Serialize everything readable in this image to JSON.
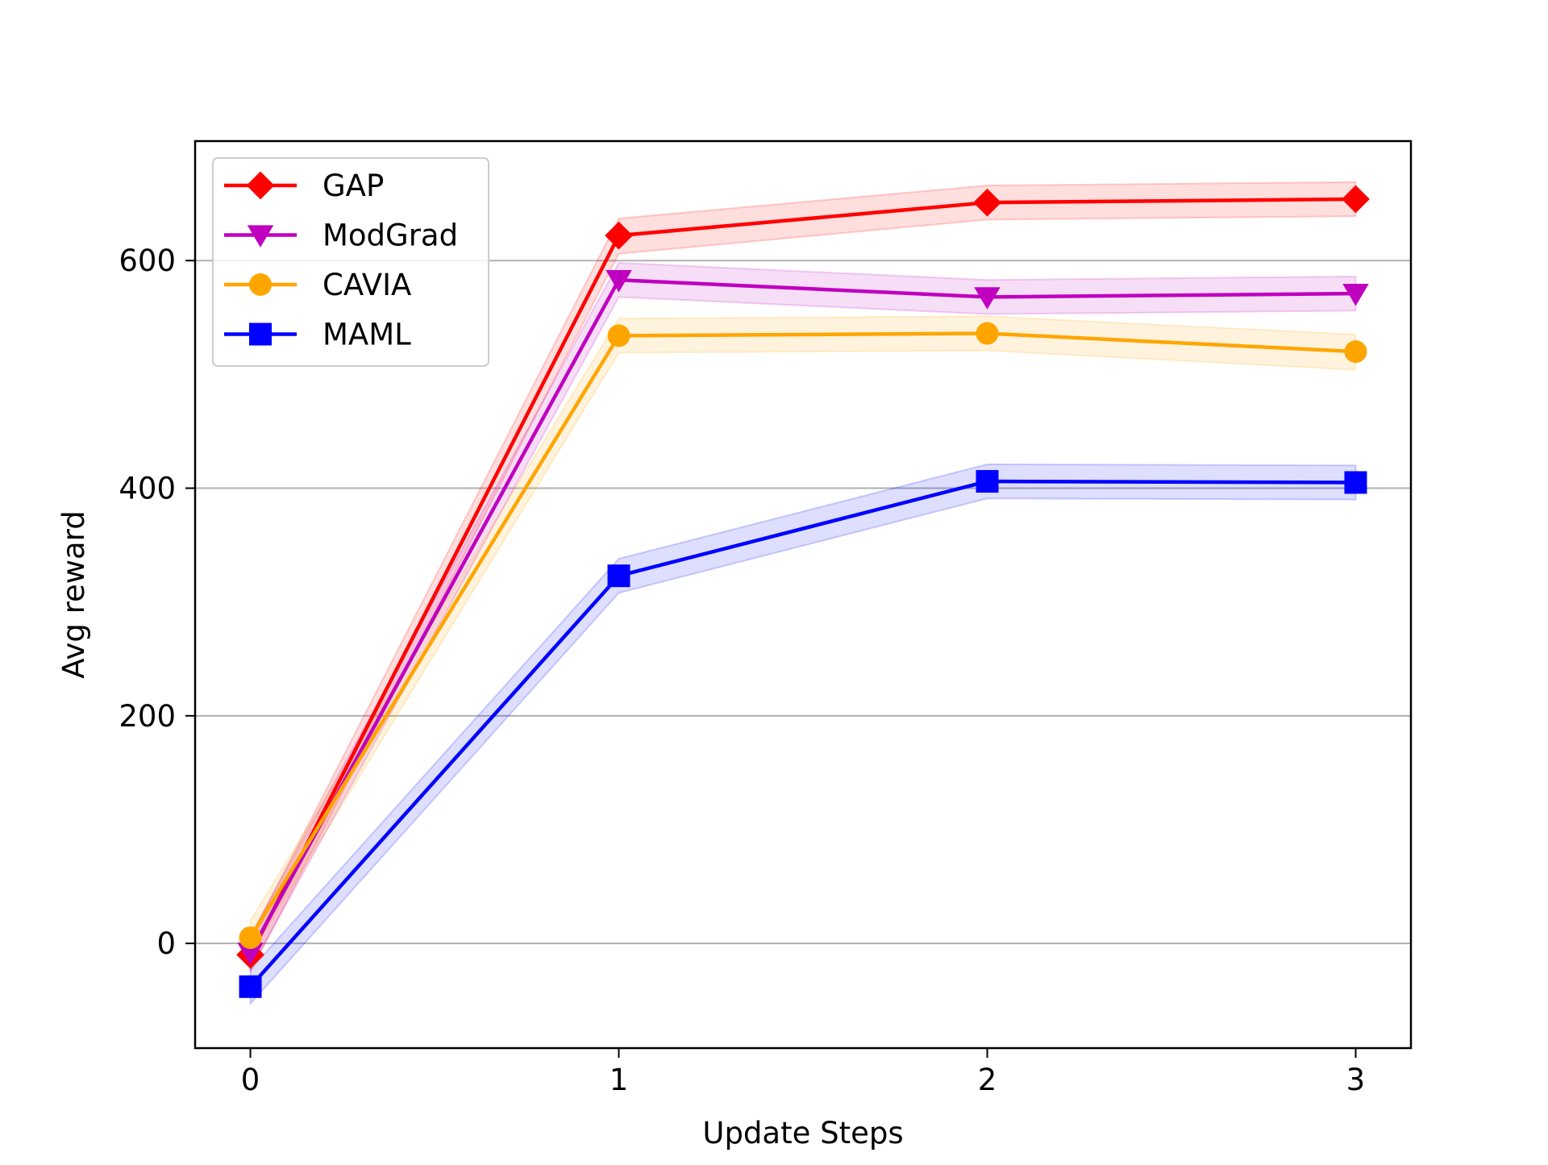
{
  "chart_data": {
    "type": "line",
    "title": "",
    "xlabel": "Update Steps",
    "ylabel": "Avg reward",
    "x": [
      0,
      1,
      2,
      3
    ],
    "xticks": [
      "0",
      "1",
      "2",
      "3"
    ],
    "xlim": [
      -0.15,
      3.15
    ],
    "yticks": [
      0,
      200,
      400,
      600
    ],
    "ytick_labels": [
      "0",
      "200",
      "400",
      "600"
    ],
    "ylim": [
      -92,
      705
    ],
    "grid": "horizontal",
    "legend_position": "top-left",
    "series": [
      {
        "name": "GAP",
        "color": "#ff0000",
        "marker": "diamond",
        "values": [
          -10,
          622,
          651,
          654
        ],
        "lower": [
          -25,
          606,
          636,
          639
        ],
        "upper": [
          5,
          637,
          666,
          669
        ]
      },
      {
        "name": "ModGrad",
        "color": "#bf00bf",
        "marker": "triangle-down",
        "values": [
          -8,
          583,
          568,
          571
        ],
        "lower": [
          -23,
          568,
          553,
          556
        ],
        "upper": [
          7,
          598,
          583,
          586
        ]
      },
      {
        "name": "CAVIA",
        "color": "#ffa500",
        "marker": "circle",
        "values": [
          5,
          534,
          536,
          520
        ],
        "lower": [
          -10,
          519,
          521,
          504
        ],
        "upper": [
          20,
          549,
          551,
          535
        ]
      },
      {
        "name": "MAML",
        "color": "#0000ff",
        "marker": "square",
        "values": [
          -38,
          323,
          406,
          405
        ],
        "lower": [
          -53,
          308,
          391,
          390
        ],
        "upper": [
          -23,
          338,
          421,
          420
        ]
      }
    ]
  }
}
